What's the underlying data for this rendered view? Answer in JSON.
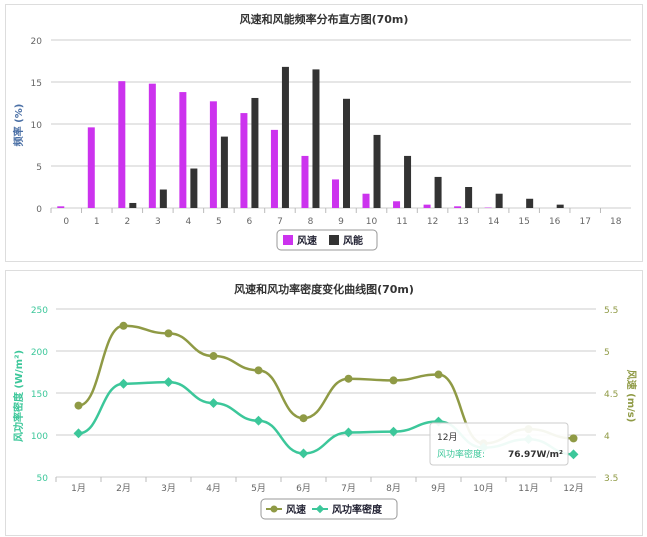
{
  "chart_data": [
    {
      "type": "bar",
      "title": "风速和风能频率分布直方图(70m)",
      "xlabel": "",
      "ylabel": "频率 (%)",
      "ylim": [
        0,
        20
      ],
      "yticks": [
        0,
        5,
        10,
        15,
        20
      ],
      "categories": [
        "0",
        "1",
        "2",
        "3",
        "4",
        "5",
        "6",
        "7",
        "8",
        "9",
        "10",
        "11",
        "12",
        "13",
        "14",
        "15",
        "16",
        "17",
        "18"
      ],
      "series": [
        {
          "name": "风速",
          "color": "#cc33ee",
          "values": [
            0.2,
            9.6,
            15.1,
            14.8,
            13.8,
            12.7,
            11.3,
            9.3,
            6.2,
            3.4,
            1.7,
            0.8,
            0.4,
            0.2,
            0.05,
            0,
            0,
            0,
            0
          ]
        },
        {
          "name": "风能",
          "color": "#333333",
          "values": [
            0,
            0,
            0.6,
            2.2,
            4.7,
            8.5,
            13.1,
            16.8,
            16.5,
            13.0,
            8.7,
            6.2,
            3.7,
            2.5,
            1.7,
            1.1,
            0.4,
            0,
            0
          ]
        }
      ],
      "legend": "bottom",
      "grid": true
    },
    {
      "type": "line",
      "title": "风速和风功率密度变化曲线图(70m)",
      "ylabel": "风功率密度 (W/m²)",
      "ylabel_right": "风速 (m/s)",
      "ylim": [
        50,
        250
      ],
      "ylim_right": [
        3.5,
        5.5
      ],
      "yticks": [
        "50",
        "100",
        "150",
        "200",
        "250"
      ],
      "yticks_right": [
        "3.5",
        "4",
        "4.5",
        "5",
        "5.5"
      ],
      "categories": [
        "1月",
        "2月",
        "3月",
        "4月",
        "5月",
        "6月",
        "7月",
        "8月",
        "9月",
        "10月",
        "11月",
        "12月"
      ],
      "series": [
        {
          "name": "风速",
          "axis": "right",
          "color": "#8f9a45",
          "values": [
            4.35,
            5.3,
            5.21,
            4.94,
            4.77,
            4.2,
            4.67,
            4.65,
            4.72,
            3.9,
            4.07,
            3.96
          ]
        },
        {
          "name": "风功率密度",
          "axis": "left",
          "color": "#3cc79a",
          "values": [
            102,
            161,
            163,
            138,
            117,
            78,
            103,
            104,
            116,
            85,
            95,
            76.97
          ]
        }
      ],
      "tooltip": {
        "title": "12月",
        "label": "风功率密度:",
        "value": "76.97W/m²"
      },
      "legend": "bottom",
      "grid": true
    }
  ]
}
